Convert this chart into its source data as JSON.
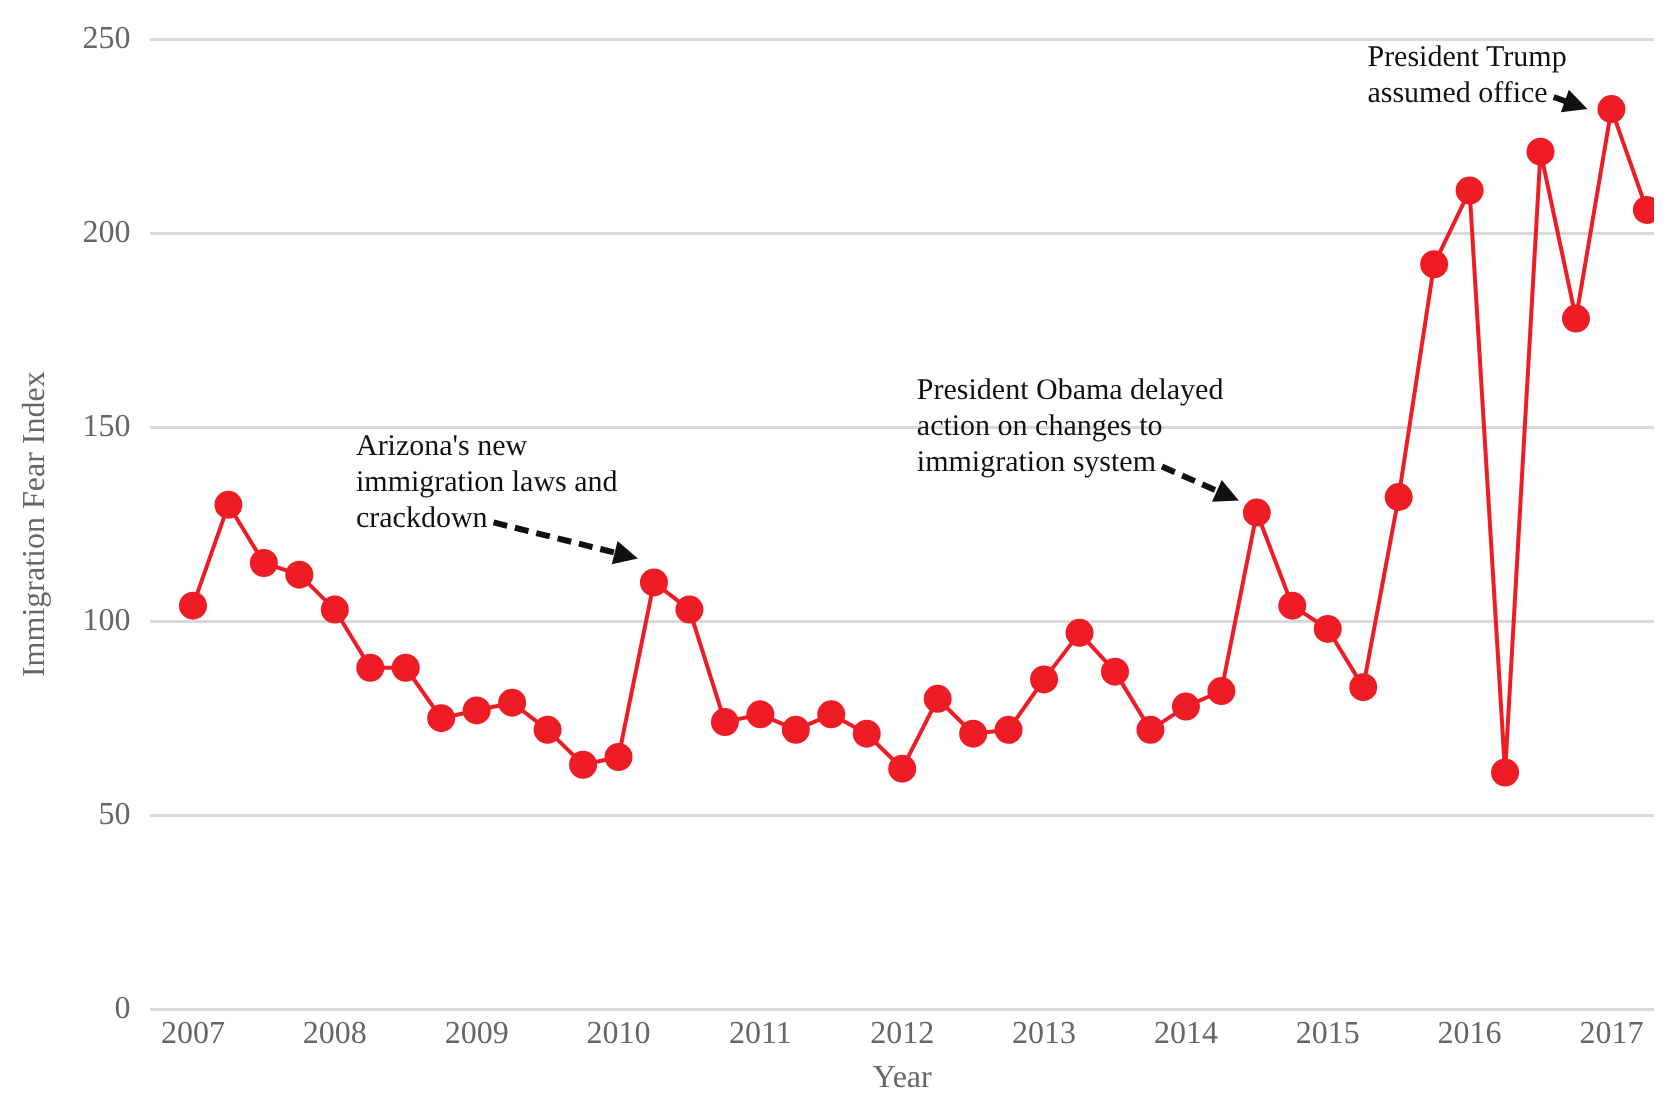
{
  "chart_data": {
    "type": "line",
    "xlabel": "Year",
    "ylabel": "Immigration Fear Index",
    "x": [
      2007,
      2007.25,
      2007.5,
      2007.75,
      2008,
      2008.25,
      2008.5,
      2008.75,
      2009,
      2009.25,
      2009.5,
      2009.75,
      2010,
      2010.25,
      2010.5,
      2010.75,
      2011,
      2011.25,
      2011.5,
      2011.75,
      2012,
      2012.25,
      2012.5,
      2012.75,
      2013,
      2013.25,
      2013.5,
      2013.75,
      2014,
      2014.25,
      2014.5,
      2014.75,
      2015,
      2015.25,
      2015.5,
      2015.75,
      2016,
      2016.25,
      2016.5,
      2016.75,
      2017,
      2017.25
    ],
    "series": [
      {
        "color": "#ee1c25",
        "values": [
          104,
          130,
          115,
          112,
          103,
          88,
          88,
          75,
          77,
          79,
          72,
          63,
          65,
          110,
          103,
          74,
          76,
          72,
          76,
          71,
          62,
          80,
          71,
          72,
          85,
          97,
          87,
          72,
          78,
          82,
          128,
          104,
          98,
          83,
          132,
          192,
          211,
          61,
          221,
          178,
          232,
          206
        ]
      }
    ],
    "xlim": [
      2006.7,
      2017.3
    ],
    "xticks": [
      2007,
      2008,
      2009,
      2010,
      2011,
      2012,
      2013,
      2014,
      2015,
      2016,
      2017
    ],
    "ylim": [
      0,
      250
    ],
    "yticks": [
      0,
      50,
      100,
      150,
      200,
      250
    ],
    "grid": "y",
    "legend": false,
    "marker": "circle",
    "line_style": "solid",
    "annotations": [
      {
        "text": "Arizona's new immigration laws and crackdown",
        "x": 2010.25,
        "y": 110
      },
      {
        "text": "President Obama delayed action on changes to immigration system",
        "x": 2014.5,
        "y": 128
      },
      {
        "text": "President Trump assumed office",
        "x": 2017,
        "y": 232
      }
    ]
  }
}
